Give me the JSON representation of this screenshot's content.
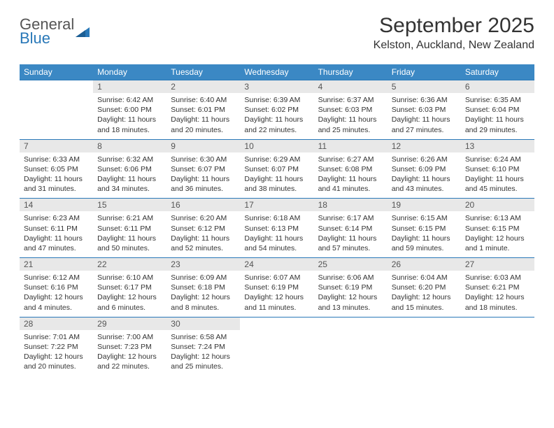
{
  "brand": {
    "name_top": "General",
    "name_bottom": "Blue"
  },
  "title": "September 2025",
  "location": "Kelston, Auckland, New Zealand",
  "colors": {
    "header_bg": "#3b88c4",
    "header_text": "#ffffff",
    "daynum_bg": "#e8e8e8",
    "cell_border": "#2978b8",
    "brand_gray": "#555555",
    "brand_blue": "#2978b8"
  },
  "day_headers": [
    "Sunday",
    "Monday",
    "Tuesday",
    "Wednesday",
    "Thursday",
    "Friday",
    "Saturday"
  ],
  "weeks": [
    [
      null,
      {
        "n": "1",
        "sr": "Sunrise: 6:42 AM",
        "ss": "Sunset: 6:00 PM",
        "dl": "Daylight: 11 hours and 18 minutes."
      },
      {
        "n": "2",
        "sr": "Sunrise: 6:40 AM",
        "ss": "Sunset: 6:01 PM",
        "dl": "Daylight: 11 hours and 20 minutes."
      },
      {
        "n": "3",
        "sr": "Sunrise: 6:39 AM",
        "ss": "Sunset: 6:02 PM",
        "dl": "Daylight: 11 hours and 22 minutes."
      },
      {
        "n": "4",
        "sr": "Sunrise: 6:37 AM",
        "ss": "Sunset: 6:03 PM",
        "dl": "Daylight: 11 hours and 25 minutes."
      },
      {
        "n": "5",
        "sr": "Sunrise: 6:36 AM",
        "ss": "Sunset: 6:03 PM",
        "dl": "Daylight: 11 hours and 27 minutes."
      },
      {
        "n": "6",
        "sr": "Sunrise: 6:35 AM",
        "ss": "Sunset: 6:04 PM",
        "dl": "Daylight: 11 hours and 29 minutes."
      }
    ],
    [
      {
        "n": "7",
        "sr": "Sunrise: 6:33 AM",
        "ss": "Sunset: 6:05 PM",
        "dl": "Daylight: 11 hours and 31 minutes."
      },
      {
        "n": "8",
        "sr": "Sunrise: 6:32 AM",
        "ss": "Sunset: 6:06 PM",
        "dl": "Daylight: 11 hours and 34 minutes."
      },
      {
        "n": "9",
        "sr": "Sunrise: 6:30 AM",
        "ss": "Sunset: 6:07 PM",
        "dl": "Daylight: 11 hours and 36 minutes."
      },
      {
        "n": "10",
        "sr": "Sunrise: 6:29 AM",
        "ss": "Sunset: 6:07 PM",
        "dl": "Daylight: 11 hours and 38 minutes."
      },
      {
        "n": "11",
        "sr": "Sunrise: 6:27 AM",
        "ss": "Sunset: 6:08 PM",
        "dl": "Daylight: 11 hours and 41 minutes."
      },
      {
        "n": "12",
        "sr": "Sunrise: 6:26 AM",
        "ss": "Sunset: 6:09 PM",
        "dl": "Daylight: 11 hours and 43 minutes."
      },
      {
        "n": "13",
        "sr": "Sunrise: 6:24 AM",
        "ss": "Sunset: 6:10 PM",
        "dl": "Daylight: 11 hours and 45 minutes."
      }
    ],
    [
      {
        "n": "14",
        "sr": "Sunrise: 6:23 AM",
        "ss": "Sunset: 6:11 PM",
        "dl": "Daylight: 11 hours and 47 minutes."
      },
      {
        "n": "15",
        "sr": "Sunrise: 6:21 AM",
        "ss": "Sunset: 6:11 PM",
        "dl": "Daylight: 11 hours and 50 minutes."
      },
      {
        "n": "16",
        "sr": "Sunrise: 6:20 AM",
        "ss": "Sunset: 6:12 PM",
        "dl": "Daylight: 11 hours and 52 minutes."
      },
      {
        "n": "17",
        "sr": "Sunrise: 6:18 AM",
        "ss": "Sunset: 6:13 PM",
        "dl": "Daylight: 11 hours and 54 minutes."
      },
      {
        "n": "18",
        "sr": "Sunrise: 6:17 AM",
        "ss": "Sunset: 6:14 PM",
        "dl": "Daylight: 11 hours and 57 minutes."
      },
      {
        "n": "19",
        "sr": "Sunrise: 6:15 AM",
        "ss": "Sunset: 6:15 PM",
        "dl": "Daylight: 11 hours and 59 minutes."
      },
      {
        "n": "20",
        "sr": "Sunrise: 6:13 AM",
        "ss": "Sunset: 6:15 PM",
        "dl": "Daylight: 12 hours and 1 minute."
      }
    ],
    [
      {
        "n": "21",
        "sr": "Sunrise: 6:12 AM",
        "ss": "Sunset: 6:16 PM",
        "dl": "Daylight: 12 hours and 4 minutes."
      },
      {
        "n": "22",
        "sr": "Sunrise: 6:10 AM",
        "ss": "Sunset: 6:17 PM",
        "dl": "Daylight: 12 hours and 6 minutes."
      },
      {
        "n": "23",
        "sr": "Sunrise: 6:09 AM",
        "ss": "Sunset: 6:18 PM",
        "dl": "Daylight: 12 hours and 8 minutes."
      },
      {
        "n": "24",
        "sr": "Sunrise: 6:07 AM",
        "ss": "Sunset: 6:19 PM",
        "dl": "Daylight: 12 hours and 11 minutes."
      },
      {
        "n": "25",
        "sr": "Sunrise: 6:06 AM",
        "ss": "Sunset: 6:19 PM",
        "dl": "Daylight: 12 hours and 13 minutes."
      },
      {
        "n": "26",
        "sr": "Sunrise: 6:04 AM",
        "ss": "Sunset: 6:20 PM",
        "dl": "Daylight: 12 hours and 15 minutes."
      },
      {
        "n": "27",
        "sr": "Sunrise: 6:03 AM",
        "ss": "Sunset: 6:21 PM",
        "dl": "Daylight: 12 hours and 18 minutes."
      }
    ],
    [
      {
        "n": "28",
        "sr": "Sunrise: 7:01 AM",
        "ss": "Sunset: 7:22 PM",
        "dl": "Daylight: 12 hours and 20 minutes."
      },
      {
        "n": "29",
        "sr": "Sunrise: 7:00 AM",
        "ss": "Sunset: 7:23 PM",
        "dl": "Daylight: 12 hours and 22 minutes."
      },
      {
        "n": "30",
        "sr": "Sunrise: 6:58 AM",
        "ss": "Sunset: 7:24 PM",
        "dl": "Daylight: 12 hours and 25 minutes."
      },
      null,
      null,
      null,
      null
    ]
  ]
}
